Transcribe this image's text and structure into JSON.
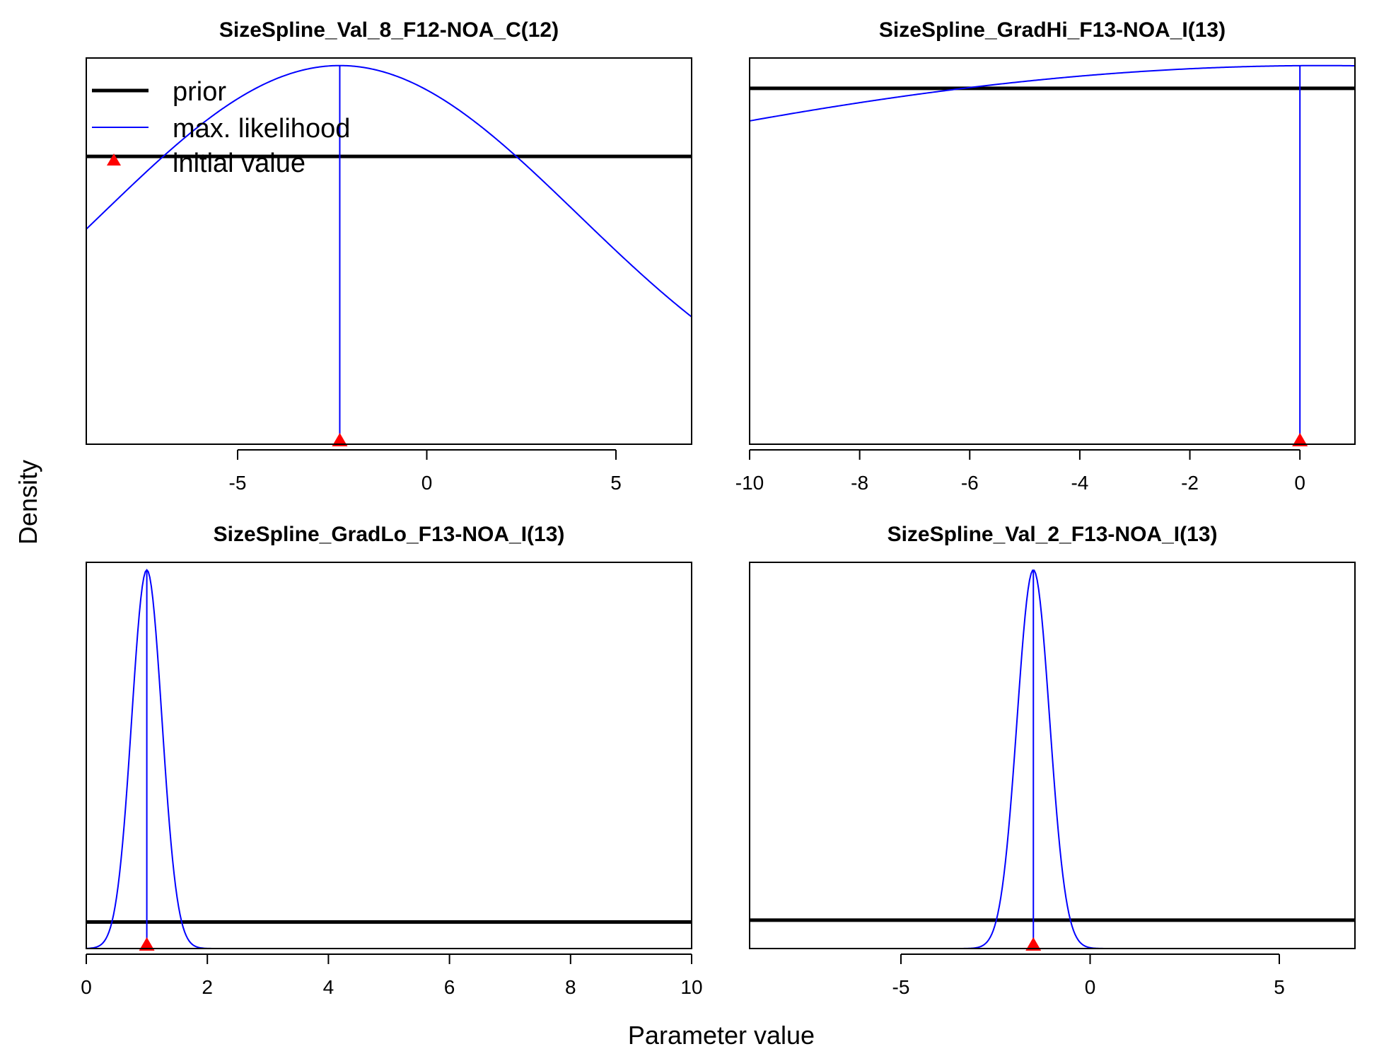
{
  "figure": {
    "xlabel": "Parameter value",
    "ylabel": "Density",
    "colors": {
      "prior": "#000000",
      "likelihood": "#0000ff",
      "initial": "#ff0000",
      "frame": "#000000"
    }
  },
  "legend": {
    "placement": "top-left of first panel",
    "entries": [
      {
        "label": "prior",
        "style": "thick-line",
        "color": "#000000"
      },
      {
        "label": "max. likelihood",
        "style": "thin-line",
        "color": "#0000ff"
      },
      {
        "label": "initial value",
        "style": "triangle",
        "color": "#ff0000"
      }
    ]
  },
  "chart_data": [
    {
      "type": "line",
      "title": "SizeSpline_Val_8_F12-NOA_C(12)",
      "xlim": [
        -9,
        7
      ],
      "ylim": [
        0,
        1.02
      ],
      "xticks": [
        -5,
        0,
        5
      ],
      "tick_labels": [
        "-5",
        "0",
        "5"
      ],
      "prior": {
        "shape": "flat",
        "level": 0.76
      },
      "likelihood": {
        "shape": "normal",
        "mean": -2.3,
        "sd": 6.3,
        "peak": 1.0
      },
      "initial_value": -2.3,
      "mle_marker": -2.3
    },
    {
      "type": "line",
      "title": "SizeSpline_GradHi_F13-NOA_I(13)",
      "xlim": [
        -10,
        1
      ],
      "ylim": [
        0,
        1.02
      ],
      "xticks": [
        -10,
        -8,
        -6,
        -4,
        -2,
        0
      ],
      "tick_labels": [
        "-10",
        "-8",
        "-6",
        "-4",
        "-2",
        "0"
      ],
      "prior": {
        "shape": "flat",
        "level": 0.94
      },
      "likelihood": {
        "shape": "normal",
        "mean": 0.4,
        "sd": 18.5,
        "peak": 1.0
      },
      "initial_value": 0,
      "mle_marker": 0
    },
    {
      "type": "line",
      "title": "SizeSpline_GradLo_F13-NOA_I(13)",
      "xlim": [
        0,
        10
      ],
      "ylim": [
        0,
        1.02
      ],
      "xticks": [
        0,
        2,
        4,
        6,
        8,
        10
      ],
      "tick_labels": [
        "0",
        "2",
        "4",
        "6",
        "8",
        "10"
      ],
      "prior": {
        "shape": "flat",
        "level": 0.07
      },
      "likelihood": {
        "shape": "normal",
        "mean": 1.0,
        "sd": 0.25,
        "peak": 1.0
      },
      "initial_value": 1.0,
      "mle_marker": 1.0
    },
    {
      "type": "line",
      "title": "SizeSpline_Val_2_F13-NOA_I(13)",
      "xlim": [
        -9,
        7
      ],
      "ylim": [
        0,
        1.02
      ],
      "xticks": [
        -5,
        0,
        5
      ],
      "tick_labels": [
        "-5",
        "0",
        "5"
      ],
      "prior": {
        "shape": "flat",
        "level": 0.075
      },
      "likelihood": {
        "shape": "normal",
        "mean": -1.5,
        "sd": 0.43,
        "peak": 1.0
      },
      "initial_value": -1.5,
      "mle_marker": -1.5
    }
  ]
}
